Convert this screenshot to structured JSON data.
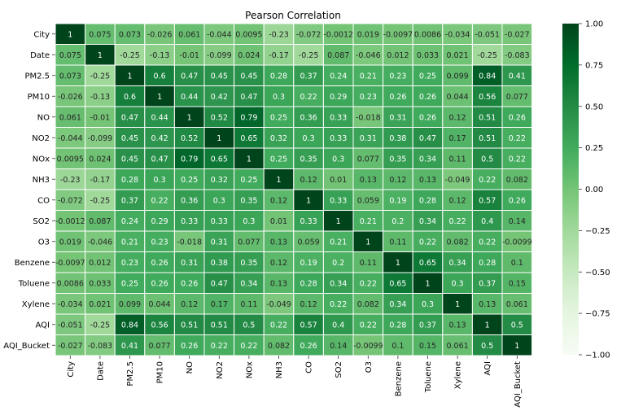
{
  "chart_data": {
    "type": "heatmap",
    "title": "Pearson Correlation",
    "labels": [
      "City",
      "Date",
      "PM2.5",
      "PM10",
      "NO",
      "NO2",
      "NOx",
      "NH3",
      "CO",
      "SO2",
      "O3",
      "Benzene",
      "Toluene",
      "Xylene",
      "AQI",
      "AQI_Bucket"
    ],
    "cell_labels": [
      [
        "1",
        "0.075",
        "0.073",
        "-0.026",
        "0.061",
        "-0.044",
        "0.0095",
        "-0.23",
        "-0.072",
        "-0.0012",
        "0.019",
        "-0.0097",
        "0.0086",
        "-0.034",
        "-0.051",
        "-0.027"
      ],
      [
        "0.075",
        "1",
        "-0.25",
        "-0.13",
        "-0.01",
        "-0.099",
        "0.024",
        "-0.17",
        "-0.25",
        "0.087",
        "-0.046",
        "0.012",
        "0.033",
        "0.021",
        "-0.25",
        "-0.083"
      ],
      [
        "0.073",
        "-0.25",
        "1",
        "0.6",
        "0.47",
        "0.45",
        "0.45",
        "0.28",
        "0.37",
        "0.24",
        "0.21",
        "0.23",
        "0.25",
        "0.099",
        "0.84",
        "0.41"
      ],
      [
        "-0.026",
        "-0.13",
        "0.6",
        "1",
        "0.44",
        "0.42",
        "0.47",
        "0.3",
        "0.22",
        "0.29",
        "0.23",
        "0.26",
        "0.26",
        "0.044",
        "0.56",
        "0.077"
      ],
      [
        "0.061",
        "-0.01",
        "0.47",
        "0.44",
        "1",
        "0.52",
        "0.79",
        "0.25",
        "0.36",
        "0.33",
        "-0.018",
        "0.31",
        "0.26",
        "0.12",
        "0.51",
        "0.26"
      ],
      [
        "-0.044",
        "-0.099",
        "0.45",
        "0.42",
        "0.52",
        "1",
        "0.65",
        "0.32",
        "0.3",
        "0.33",
        "0.31",
        "0.38",
        "0.47",
        "0.17",
        "0.51",
        "0.22"
      ],
      [
        "0.0095",
        "0.024",
        "0.45",
        "0.47",
        "0.79",
        "0.65",
        "1",
        "0.25",
        "0.35",
        "0.3",
        "0.077",
        "0.35",
        "0.34",
        "0.11",
        "0.5",
        "0.22"
      ],
      [
        "-0.23",
        "-0.17",
        "0.28",
        "0.3",
        "0.25",
        "0.32",
        "0.25",
        "1",
        "0.12",
        "0.01",
        "0.13",
        "0.12",
        "0.13",
        "-0.049",
        "0.22",
        "0.082"
      ],
      [
        "-0.072",
        "-0.25",
        "0.37",
        "0.22",
        "0.36",
        "0.3",
        "0.35",
        "0.12",
        "1",
        "0.33",
        "0.059",
        "0.19",
        "0.28",
        "0.12",
        "0.57",
        "0.26"
      ],
      [
        "-0.0012",
        "0.087",
        "0.24",
        "0.29",
        "0.33",
        "0.33",
        "0.3",
        "0.01",
        "0.33",
        "1",
        "0.21",
        "0.2",
        "0.34",
        "0.22",
        "0.4",
        "0.14"
      ],
      [
        "0.019",
        "-0.046",
        "0.21",
        "0.23",
        "-0.018",
        "0.31",
        "0.077",
        "0.13",
        "0.059",
        "0.21",
        "1",
        "0.11",
        "0.22",
        "0.082",
        "0.22",
        "-0.0099"
      ],
      [
        "-0.0097",
        "0.012",
        "0.23",
        "0.26",
        "0.31",
        "0.38",
        "0.35",
        "0.12",
        "0.19",
        "0.2",
        "0.11",
        "1",
        "0.65",
        "0.34",
        "0.28",
        "0.1"
      ],
      [
        "0.0086",
        "0.033",
        "0.25",
        "0.26",
        "0.26",
        "0.47",
        "0.34",
        "0.13",
        "0.28",
        "0.34",
        "0.22",
        "0.65",
        "1",
        "0.3",
        "0.37",
        "0.15"
      ],
      [
        "-0.034",
        "0.021",
        "0.099",
        "0.044",
        "0.12",
        "0.17",
        "0.11",
        "-0.049",
        "0.12",
        "0.22",
        "0.082",
        "0.34",
        "0.3",
        "1",
        "0.13",
        "0.061"
      ],
      [
        "-0.051",
        "-0.25",
        "0.84",
        "0.56",
        "0.51",
        "0.51",
        "0.5",
        "0.22",
        "0.57",
        "0.4",
        "0.22",
        "0.28",
        "0.37",
        "0.13",
        "1",
        "0.5"
      ],
      [
        "-0.027",
        "-0.083",
        "0.41",
        "0.077",
        "0.26",
        "0.22",
        "0.22",
        "0.082",
        "0.26",
        "0.14",
        "-0.0099",
        "0.1",
        "0.15",
        "0.061",
        "0.5",
        "1"
      ]
    ],
    "colorbar": {
      "range": [
        -1.0,
        1.0
      ],
      "ticks": [
        "1.00",
        "0.75",
        "0.50",
        "0.25",
        "0.00",
        "−0.25",
        "−0.50",
        "−0.75",
        "−1.00"
      ],
      "colormap": "Greens",
      "colors": [
        "#f7fcf5",
        "#e5f5e0",
        "#c7e9c0",
        "#a1d99b",
        "#74c476",
        "#41ab5d",
        "#238b45",
        "#006d2c",
        "#00441b"
      ]
    }
  }
}
